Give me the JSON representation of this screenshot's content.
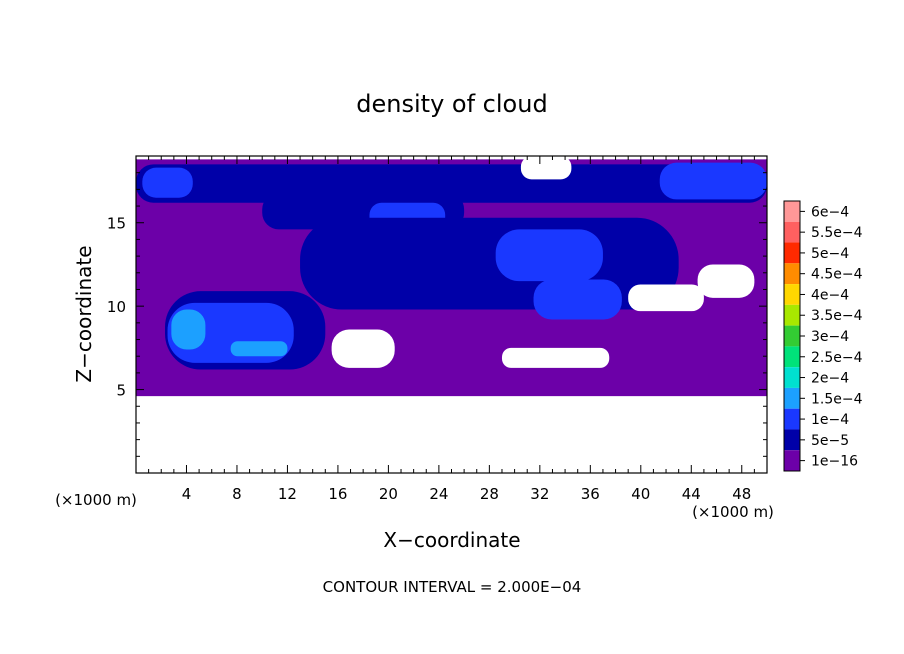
{
  "chart_data": {
    "type": "heatmap",
    "title": "density of cloud",
    "xlabel": "X−coordinate",
    "ylabel": "Z−coordinate",
    "x_unit": "(×1000 m)",
    "z_unit": "(×1000 m)",
    "xlim": [
      0,
      50
    ],
    "ylim": [
      0,
      19
    ],
    "x_ticks": [
      4,
      8,
      12,
      16,
      20,
      24,
      28,
      32,
      36,
      40,
      44,
      48
    ],
    "x_tick_labels": [
      "4",
      "8",
      "12",
      "16",
      "20",
      "24",
      "28",
      "32",
      "36",
      "40",
      "44",
      "48"
    ],
    "y_ticks": [
      5,
      10,
      15
    ],
    "y_tick_labels": [
      "5",
      "10",
      "15"
    ],
    "footer": "CONTOUR INTERVAL = 2.000E−04",
    "colorbar": {
      "labels": [
        "6e−4",
        "5.5e−4",
        "5e−4",
        "4.5e−4",
        "4e−4",
        "3.5e−4",
        "3e−4",
        "2.5e−4",
        "2e−4",
        "1.5e−4",
        "1e−4",
        "5e−5",
        "1e−16"
      ],
      "colors": [
        "#ff9898",
        "#ff6060",
        "#ff2a00",
        "#ff8c00",
        "#ffd700",
        "#a8e800",
        "#33cc33",
        "#00e27a",
        "#00e0d0",
        "#1ca0ff",
        "#1a38ff",
        "#0000a8",
        "#6c00a8"
      ]
    },
    "regions": [
      {
        "level": "1e−16",
        "color": "#6c00a8",
        "x": [
          0,
          50
        ],
        "z": [
          4.6,
          19
        ]
      },
      {
        "level": "5e−5",
        "color": "#0000a8",
        "x": [
          0,
          50
        ],
        "z": [
          16.2,
          18.5
        ]
      },
      {
        "level": "1e−4",
        "color": "#1a38ff",
        "x": [
          0.5,
          4.5
        ],
        "z": [
          16.5,
          18.3
        ]
      },
      {
        "level": "1e−4",
        "color": "#1a38ff",
        "x": [
          41.5,
          50
        ],
        "z": [
          16.4,
          18.6
        ]
      },
      {
        "level": "5e−5",
        "color": "#0000a8",
        "x": [
          10,
          26
        ],
        "z": [
          14.6,
          16.8
        ]
      },
      {
        "level": "1e−4",
        "color": "#1a38ff",
        "x": [
          18.5,
          24.5
        ],
        "z": [
          14.6,
          16.2
        ]
      },
      {
        "level": "5e−5",
        "color": "#0000a8",
        "x": [
          13,
          43
        ],
        "z": [
          9.8,
          15.3
        ]
      },
      {
        "level": "1e−4",
        "color": "#1a38ff",
        "x": [
          28.5,
          37
        ],
        "z": [
          11.5,
          14.6
        ]
      },
      {
        "level": "1e−4",
        "color": "#1a38ff",
        "x": [
          31.5,
          38.5
        ],
        "z": [
          9.2,
          11.6
        ]
      },
      {
        "level": "5e−5",
        "color": "#0000a8",
        "x": [
          2.3,
          15
        ],
        "z": [
          6.2,
          10.9
        ]
      },
      {
        "level": "1e−4",
        "color": "#1a38ff",
        "x": [
          2.5,
          12.5
        ],
        "z": [
          6.6,
          10.2
        ]
      },
      {
        "level": "1.5e−4",
        "color": "#1ca0ff",
        "x": [
          2.8,
          5.5
        ],
        "z": [
          7.4,
          9.8
        ]
      },
      {
        "level": "1.5e−4",
        "color": "#1ca0ff",
        "x": [
          7.5,
          12
        ],
        "z": [
          7.0,
          7.9
        ]
      },
      {
        "level": "below 1e−16",
        "color": "#ffffff",
        "x": [
          0,
          50
        ],
        "z": [
          0,
          4.6
        ]
      },
      {
        "level": "below 1e−16",
        "color": "#ffffff",
        "x": [
          15.5,
          20.5
        ],
        "z": [
          6.3,
          8.6
        ]
      },
      {
        "level": "below 1e−16",
        "color": "#ffffff",
        "x": [
          29,
          37.5
        ],
        "z": [
          6.3,
          7.5
        ]
      },
      {
        "level": "below 1e−16",
        "color": "#ffffff",
        "x": [
          39,
          45
        ],
        "z": [
          9.7,
          11.3
        ]
      },
      {
        "level": "below 1e−16",
        "color": "#ffffff",
        "x": [
          44.5,
          49
        ],
        "z": [
          10.5,
          12.5
        ]
      },
      {
        "level": "below 1e−16",
        "color": "#ffffff",
        "x": [
          0,
          50
        ],
        "z": [
          18.8,
          19
        ]
      },
      {
        "level": "below 1e−16",
        "color": "#ffffff",
        "x": [
          30.5,
          34.5
        ],
        "z": [
          17.6,
          19
        ]
      }
    ]
  }
}
